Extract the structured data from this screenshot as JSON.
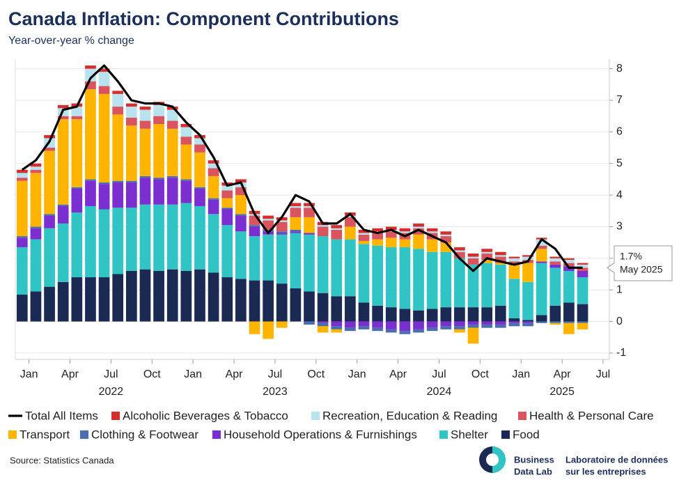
{
  "chart_data": {
    "type": "stacked_bar_line",
    "title": "Canada Inflation: Component Contributions",
    "subtitle": "Year-over-year % change",
    "source": "Source: Statistics Canada",
    "x": [
      "2021-12",
      "2022-01",
      "2022-02",
      "2022-03",
      "2022-04",
      "2022-05",
      "2022-06",
      "2022-07",
      "2022-08",
      "2022-09",
      "2022-10",
      "2022-11",
      "2022-12",
      "2023-01",
      "2023-02",
      "2023-03",
      "2023-04",
      "2023-05",
      "2023-06",
      "2023-07",
      "2023-08",
      "2023-09",
      "2023-10",
      "2023-11",
      "2023-12",
      "2024-01",
      "2024-02",
      "2024-03",
      "2024-04",
      "2024-05",
      "2024-06",
      "2024-07",
      "2024-08",
      "2024-09",
      "2024-10",
      "2024-11",
      "2024-12",
      "2025-01",
      "2025-02",
      "2025-03",
      "2025-04",
      "2025-05"
    ],
    "xlim": [
      "2021-12",
      "2025-07"
    ],
    "xticks": [
      {
        "value": "2022-01",
        "label": "Jan"
      },
      {
        "value": "2022-04",
        "label": "Apr"
      },
      {
        "value": "2022-07",
        "label": "Jul"
      },
      {
        "value": "2022-10",
        "label": "Oct"
      },
      {
        "value": "2023-01",
        "label": "Jan"
      },
      {
        "value": "2023-04",
        "label": "Apr"
      },
      {
        "value": "2023-07",
        "label": "Jul"
      },
      {
        "value": "2023-10",
        "label": "Oct"
      },
      {
        "value": "2024-01",
        "label": "Jan"
      },
      {
        "value": "2024-04",
        "label": "Apr"
      },
      {
        "value": "2024-07",
        "label": "Jul"
      },
      {
        "value": "2024-10",
        "label": "Oct"
      },
      {
        "value": "2025-01",
        "label": "Jan"
      },
      {
        "value": "2025-04",
        "label": "Apr"
      },
      {
        "value": "2025-07",
        "label": "Jul"
      }
    ],
    "year_labels": [
      {
        "value": "2022-07",
        "label": "2022"
      },
      {
        "value": "2023-07",
        "label": "2023"
      },
      {
        "value": "2024-07",
        "label": "2024"
      },
      {
        "value": "2025-04",
        "label": "2025"
      }
    ],
    "ylim": [
      -1.2,
      8.3
    ],
    "yticks": [
      -1,
      0,
      1,
      2,
      3,
      4,
      5,
      6,
      7,
      8
    ],
    "grid": true,
    "line_series": {
      "name": "Total All Items",
      "color": "#000000",
      "values": [
        4.8,
        5.1,
        5.7,
        6.7,
        6.8,
        7.7,
        8.1,
        7.6,
        7.0,
        6.9,
        6.9,
        6.8,
        6.3,
        5.9,
        5.2,
        4.3,
        4.4,
        3.4,
        2.8,
        3.3,
        4.0,
        3.8,
        3.1,
        3.1,
        3.4,
        2.9,
        2.8,
        2.9,
        2.7,
        2.9,
        2.7,
        2.5,
        2.0,
        1.6,
        2.0,
        1.9,
        1.8,
        1.9,
        2.6,
        2.3,
        1.7,
        1.7
      ]
    },
    "series": [
      {
        "name": "Alcoholic Beverages & Tobacco",
        "color": "#d42e2e",
        "values": [
          0.1,
          0.1,
          0.1,
          0.1,
          0.1,
          0.1,
          0.1,
          0.1,
          0.1,
          0.1,
          0.1,
          0.1,
          0.1,
          0.1,
          0.1,
          0.1,
          0.1,
          0.1,
          0.1,
          0.1,
          0.1,
          0.1,
          0.1,
          0.1,
          0.1,
          0.1,
          0.1,
          0.1,
          0.1,
          0.1,
          0.1,
          0.1,
          0.1,
          0.1,
          0.1,
          0.1,
          0.05,
          0.05,
          0.05,
          0.05,
          0.05,
          0.05
        ]
      },
      {
        "name": "Recreation, Education & Reading",
        "color": "#b9e2ef",
        "values": [
          0.15,
          0.1,
          0.3,
          0.25,
          0.3,
          0.4,
          0.45,
          0.4,
          0.35,
          0.35,
          0.35,
          0.35,
          0.3,
          0.2,
          0.15,
          0.15,
          0.15,
          0.05,
          0.05,
          0.05,
          0.05,
          0.05,
          0.05,
          0.05,
          0.05,
          0.05,
          0.05,
          0.05,
          0.05,
          0.05,
          0.05,
          0.05,
          0.05,
          0.05,
          0.05,
          0.05,
          0.1,
          0.1,
          0.2,
          0.1,
          0.1,
          0.1
        ]
      },
      {
        "name": "Health & Personal Care",
        "color": "#d9545e",
        "values": [
          0.1,
          0.1,
          0.1,
          0.1,
          0.1,
          0.25,
          0.25,
          0.25,
          0.25,
          0.25,
          0.25,
          0.25,
          0.25,
          0.25,
          0.25,
          0.25,
          0.25,
          0.3,
          0.3,
          0.3,
          0.3,
          0.3,
          0.3,
          0.3,
          0.3,
          0.2,
          0.2,
          0.2,
          0.2,
          0.2,
          0.2,
          0.2,
          0.2,
          0.2,
          0.2,
          0.2,
          0.1,
          0.1,
          0.1,
          0.1,
          0.1,
          0.1
        ]
      },
      {
        "name": "Transport",
        "color": "#ffb400",
        "values": [
          1.75,
          1.7,
          2.0,
          2.7,
          2.15,
          2.85,
          2.8,
          2.1,
          1.75,
          1.5,
          1.7,
          1.5,
          1.1,
          1.1,
          0.7,
          0.3,
          0.6,
          -0.4,
          -0.55,
          -0.2,
          0.4,
          0.5,
          -0.2,
          -0.1,
          0.4,
          0.1,
          0.2,
          0.3,
          0.25,
          0.45,
          0.4,
          0.3,
          -0.1,
          -0.5,
          0.1,
          0.05,
          0.45,
          0.6,
          0.4,
          -0.05,
          -0.35,
          -0.2
        ]
      },
      {
        "name": "Clothing & Footwear",
        "color": "#4a6db0",
        "values": [
          0.05,
          0.05,
          0.05,
          0.05,
          0.05,
          0.05,
          0.05,
          0.05,
          0.05,
          0.05,
          0.05,
          0.05,
          0.05,
          0.05,
          0.05,
          0.05,
          0.05,
          0.05,
          0.05,
          0.05,
          0.05,
          -0.1,
          -0.1,
          -0.1,
          -0.1,
          -0.1,
          -0.1,
          -0.1,
          -0.1,
          -0.1,
          -0.1,
          -0.1,
          -0.1,
          -0.1,
          -0.1,
          -0.1,
          -0.1,
          -0.1,
          -0.05,
          -0.05,
          -0.05,
          -0.05
        ]
      },
      {
        "name": "Household Operations & Furnishings",
        "color": "#7b2fd0",
        "values": [
          0.3,
          0.35,
          0.4,
          0.55,
          0.75,
          0.8,
          0.8,
          0.8,
          0.8,
          0.85,
          0.8,
          0.85,
          0.7,
          0.55,
          0.45,
          0.5,
          0.5,
          0.3,
          0.1,
          0.05,
          0.05,
          0.05,
          -0.05,
          -0.15,
          -0.2,
          -0.15,
          -0.2,
          -0.25,
          -0.3,
          -0.25,
          -0.2,
          -0.15,
          -0.15,
          -0.1,
          -0.1,
          -0.1,
          -0.05,
          -0.05,
          0.05,
          0.1,
          0.15,
          0.2
        ]
      },
      {
        "name": "Shelter",
        "color": "#30c4c4",
        "values": [
          1.5,
          1.65,
          1.85,
          1.85,
          2.05,
          2.25,
          2.15,
          2.1,
          2.0,
          2.05,
          2.1,
          2.05,
          2.15,
          2.0,
          1.85,
          1.65,
          1.5,
          1.4,
          1.45,
          1.55,
          1.75,
          1.8,
          1.8,
          1.8,
          1.8,
          1.85,
          1.9,
          1.9,
          1.95,
          1.95,
          1.8,
          1.75,
          1.55,
          1.35,
          1.4,
          1.3,
          1.25,
          1.2,
          1.65,
          1.2,
          1.0,
          0.85
        ]
      },
      {
        "name": "Food",
        "color": "#1b2a52",
        "values": [
          0.85,
          0.95,
          1.1,
          1.25,
          1.4,
          1.4,
          1.4,
          1.5,
          1.6,
          1.65,
          1.6,
          1.65,
          1.6,
          1.65,
          1.55,
          1.4,
          1.35,
          1.3,
          1.3,
          1.2,
          1.05,
          0.95,
          0.9,
          0.8,
          0.8,
          0.6,
          0.5,
          0.45,
          0.4,
          0.35,
          0.4,
          0.45,
          0.45,
          0.45,
          0.45,
          0.5,
          0.1,
          0.05,
          0.2,
          0.5,
          0.6,
          0.55
        ]
      }
    ],
    "annotation": {
      "value_label": "1.7%",
      "date_label": "May 2025"
    },
    "branding": {
      "english": [
        "Business",
        "Data Lab"
      ],
      "french": [
        "Laboratoire de données",
        "sur les entreprises"
      ]
    }
  }
}
